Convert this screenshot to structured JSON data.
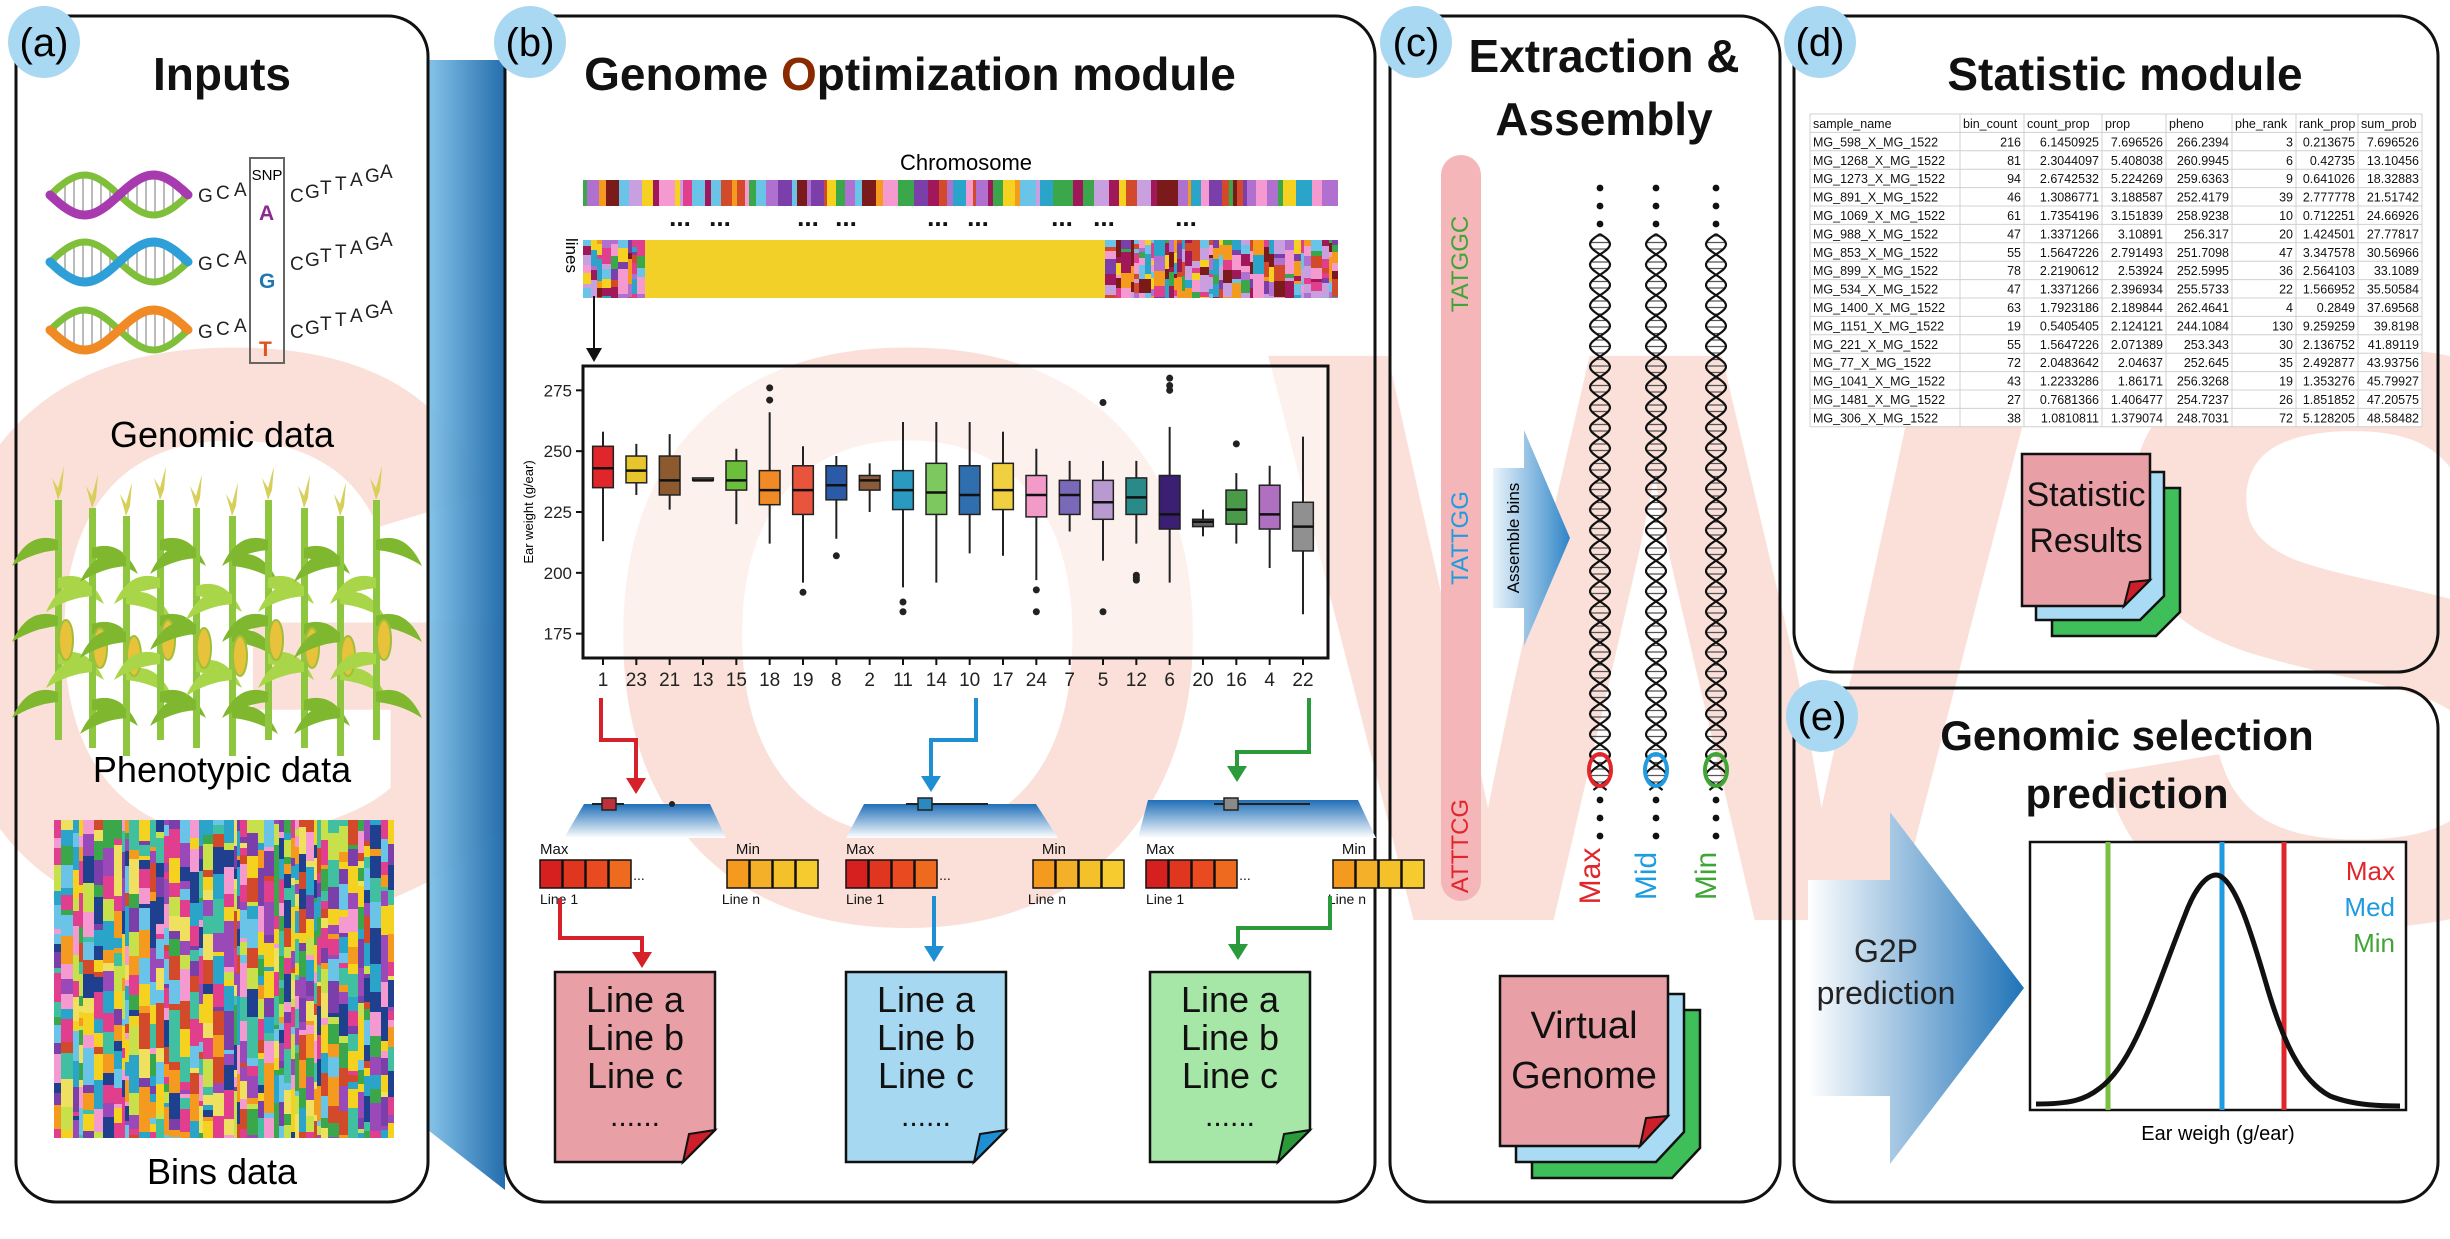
{
  "watermark": "GOWS",
  "panels": {
    "a": {
      "letter": "(a)",
      "title": "Inputs",
      "genomic_label": "Genomic data",
      "phenotypic_label": "Phenotypic data",
      "bins_label": "Bins data",
      "snp_label": "SNP",
      "sequences": [
        {
          "left": "GCA",
          "snp": "A",
          "right": "CGTTAGA",
          "snp_color": "#8b2a8f"
        },
        {
          "left": "GCA",
          "snp": "G",
          "right": "CGTTAGA",
          "snp_color": "#1f77b4"
        },
        {
          "left": "GCA",
          "snp": "T",
          "right": "CGTTAGA",
          "snp_color": "#e0531f"
        }
      ]
    },
    "b": {
      "letter": "(b)",
      "title_pre": "Genome ",
      "title_o": "O",
      "title_post": "ptimization module",
      "chromosome_label": "Chromosome",
      "lines_label": "lines",
      "dots": "...",
      "max_label": "Max",
      "min_label": "Min",
      "line1_label": "Line 1",
      "linen_label": "Line n",
      "ellipsis": "...",
      "docs": [
        {
          "color": "#e8a0a6",
          "corner": "#cc1f2b",
          "lines": [
            "Line a",
            "Line b",
            "Line c",
            "......"
          ]
        },
        {
          "color": "#a7d8f2",
          "corner": "#1f8fd4",
          "lines": [
            "Line a",
            "Line b",
            "Line c",
            "......"
          ]
        },
        {
          "color": "#a6e6a6",
          "corner": "#2a9a3a",
          "lines": [
            "Line a",
            "Line b",
            "Line c",
            "......"
          ]
        }
      ]
    },
    "c": {
      "letter": "(c)",
      "title_line1": "Extraction &",
      "title_line2": "Assembly",
      "seq_top": "TATGGC",
      "seq_mid": "TATTGG",
      "seq_bot": "ATTTCG",
      "assemble_label": "Assemble bins",
      "max_label": "Max",
      "mid_label": "Mid",
      "min_label": "Min",
      "doc_line1": "Virtual",
      "doc_line2": "Genome"
    },
    "d": {
      "letter": "(d)",
      "title": "Statistic module",
      "doc_line1": "Statistic",
      "doc_line2": "Results",
      "table": {
        "headers": [
          "sample_name",
          "bin_count",
          "count_prop",
          "prop",
          "pheno",
          "phe_rank",
          "rank_prop",
          "sum_prob"
        ],
        "rows": [
          [
            "MG_598_X_MG_1522",
            "216",
            "6.1450925",
            "7.696526",
            "266.2394",
            "3",
            "0.213675",
            "7.696526"
          ],
          [
            "MG_1268_X_MG_1522",
            "81",
            "2.3044097",
            "5.408038",
            "260.9945",
            "6",
            "0.42735",
            "13.10456"
          ],
          [
            "MG_1273_X_MG_1522",
            "94",
            "2.6742532",
            "5.224269",
            "259.6363",
            "9",
            "0.641026",
            "18.32883"
          ],
          [
            "MG_891_X_MG_1522",
            "46",
            "1.3086771",
            "3.188587",
            "252.4179",
            "39",
            "2.777778",
            "21.51742"
          ],
          [
            "MG_1069_X_MG_1522",
            "61",
            "1.7354196",
            "3.151839",
            "258.9238",
            "10",
            "0.712251",
            "24.66926"
          ],
          [
            "MG_988_X_MG_1522",
            "47",
            "1.3371266",
            "3.10891",
            "256.317",
            "20",
            "1.424501",
            "27.77817"
          ],
          [
            "MG_853_X_MG_1522",
            "55",
            "1.5647226",
            "2.791493",
            "251.7098",
            "47",
            "3.347578",
            "30.56966"
          ],
          [
            "MG_899_X_MG_1522",
            "78",
            "2.2190612",
            "2.53924",
            "252.5995",
            "36",
            "2.564103",
            "33.1089"
          ],
          [
            "MG_534_X_MG_1522",
            "47",
            "1.3371266",
            "2.396934",
            "255.5733",
            "22",
            "1.566952",
            "35.50584"
          ],
          [
            "MG_1400_X_MG_1522",
            "63",
            "1.7923186",
            "2.189844",
            "262.4641",
            "4",
            "0.2849",
            "37.69568"
          ],
          [
            "MG_1151_X_MG_1522",
            "19",
            "0.5405405",
            "2.124121",
            "244.1084",
            "130",
            "9.259259",
            "39.8198"
          ],
          [
            "MG_221_X_MG_1522",
            "55",
            "1.5647226",
            "2.071389",
            "253.343",
            "30",
            "2.136752",
            "41.89119"
          ],
          [
            "MG_77_X_MG_1522",
            "72",
            "2.0483642",
            "2.04637",
            "252.645",
            "35",
            "2.492877",
            "43.93756"
          ],
          [
            "MG_1041_X_MG_1522",
            "43",
            "1.2233286",
            "1.86171",
            "256.3268",
            "19",
            "1.353276",
            "45.79927"
          ],
          [
            "MG_1481_X_MG_1522",
            "27",
            "0.7681366",
            "1.406477",
            "254.7237",
            "26",
            "1.851852",
            "47.20575"
          ],
          [
            "MG_306_X_MG_1522",
            "38",
            "1.0810811",
            "1.379074",
            "248.7031",
            "72",
            "5.128205",
            "48.58482"
          ]
        ]
      }
    },
    "e": {
      "letter": "(e)",
      "title_line1": "Genomic selection",
      "title_line2": "prediction",
      "arrow_line1": "G2P",
      "arrow_line2": "prediction",
      "xlabel": "Ear weigh (g/ear)",
      "legend": [
        {
          "label": "Max",
          "color": "#e0252b"
        },
        {
          "label": "Med",
          "color": "#1f9be0"
        },
        {
          "label": "Min",
          "color": "#3fa535"
        }
      ]
    }
  },
  "chart_data": {
    "type": "box",
    "ylabel": "Ear weight (g/ear)",
    "ylim": [
      165,
      285
    ],
    "yticks": [
      175,
      200,
      225,
      250,
      275
    ],
    "categories": [
      "1",
      "23",
      "21",
      "13",
      "15",
      "18",
      "19",
      "8",
      "2",
      "11",
      "14",
      "10",
      "17",
      "24",
      "7",
      "5",
      "12",
      "6",
      "20",
      "16",
      "4",
      "22"
    ],
    "colors": [
      "#e0252b",
      "#e7c52d",
      "#8c5a2e",
      "#7a7a7a",
      "#6cbf3a",
      "#f08a24",
      "#e8553c",
      "#2a5aa8",
      "#8a5a3a",
      "#2a9ac0",
      "#7ec860",
      "#2f6fb0",
      "#f0d040",
      "#f29ac8",
      "#7a68b8",
      "#b89ad0",
      "#2a8a8a",
      "#3b1f73",
      "#606060",
      "#4a9a4a",
      "#b070c0",
      "#909090"
    ],
    "boxes": [
      {
        "low": 213,
        "q1": 235,
        "med": 243,
        "q3": 252,
        "high": 258,
        "out": []
      },
      {
        "low": 232,
        "q1": 237,
        "med": 242,
        "q3": 248,
        "high": 253,
        "out": []
      },
      {
        "low": 226,
        "q1": 232,
        "med": 238,
        "q3": 248,
        "high": 257,
        "out": []
      },
      {
        "low": 238,
        "q1": 238,
        "med": 238,
        "q3": 239,
        "high": 239,
        "out": []
      },
      {
        "low": 220,
        "q1": 234,
        "med": 238,
        "q3": 246,
        "high": 251,
        "out": []
      },
      {
        "low": 212,
        "q1": 228,
        "med": 234,
        "q3": 242,
        "high": 266,
        "out": [
          276,
          271
        ]
      },
      {
        "low": 196,
        "q1": 224,
        "med": 234,
        "q3": 244,
        "high": 252,
        "out": [
          192
        ]
      },
      {
        "low": 214,
        "q1": 230,
        "med": 236,
        "q3": 244,
        "high": 248,
        "out": [
          207
        ]
      },
      {
        "low": 225,
        "q1": 234,
        "med": 238,
        "q3": 240,
        "high": 245,
        "out": []
      },
      {
        "low": 194,
        "q1": 226,
        "med": 234,
        "q3": 242,
        "high": 262,
        "out": [
          188,
          184
        ]
      },
      {
        "low": 196,
        "q1": 224,
        "med": 233,
        "q3": 245,
        "high": 262,
        "out": []
      },
      {
        "low": 208,
        "q1": 224,
        "med": 232,
        "q3": 244,
        "high": 262,
        "out": []
      },
      {
        "low": 207,
        "q1": 226,
        "med": 234,
        "q3": 245,
        "high": 258,
        "out": []
      },
      {
        "low": 197,
        "q1": 223,
        "med": 232,
        "q3": 240,
        "high": 251,
        "out": [
          193,
          184
        ]
      },
      {
        "low": 217,
        "q1": 224,
        "med": 232,
        "q3": 238,
        "high": 246,
        "out": []
      },
      {
        "low": 205,
        "q1": 222,
        "med": 229,
        "q3": 238,
        "high": 246,
        "out": [
          270,
          184
        ]
      },
      {
        "low": 212,
        "q1": 224,
        "med": 231,
        "q3": 239,
        "high": 246,
        "out": [
          199,
          198,
          197
        ]
      },
      {
        "low": 196,
        "q1": 218,
        "med": 224,
        "q3": 240,
        "high": 260,
        "out": [
          280,
          277,
          275
        ]
      },
      {
        "low": 215,
        "q1": 219,
        "med": 221,
        "q3": 222,
        "high": 226,
        "out": []
      },
      {
        "low": 212,
        "q1": 220,
        "med": 226,
        "q3": 234,
        "high": 241,
        "out": [
          253
        ]
      },
      {
        "low": 202,
        "q1": 218,
        "med": 224,
        "q3": 236,
        "high": 244,
        "out": []
      },
      {
        "low": 183,
        "q1": 209,
        "med": 219,
        "q3": 229,
        "high": 256,
        "out": []
      }
    ]
  }
}
